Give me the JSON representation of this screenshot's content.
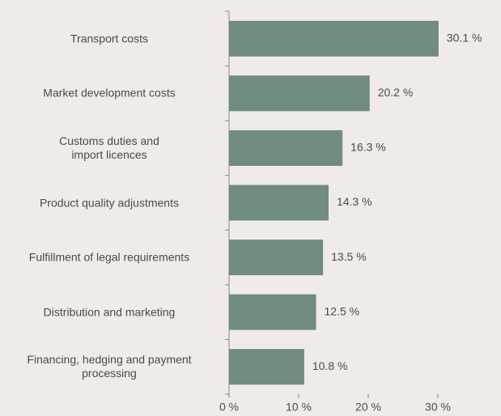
{
  "chart_data": {
    "type": "bar",
    "orientation": "horizontal",
    "categories": [
      "Transport costs",
      "Market development costs",
      "Customs duties and\nimport licences",
      "Product quality adjustments",
      "Fulfillment of legal requirements",
      "Distribution and marketing",
      "Financing, hedging and payment\nprocessing"
    ],
    "values": [
      30.1,
      20.2,
      16.3,
      14.3,
      13.5,
      12.5,
      10.8
    ],
    "value_labels": [
      "30.1 %",
      "20.2 %",
      "16.3 %",
      "14.3 %",
      "13.5 %",
      "12.5 %",
      "10.8 %"
    ],
    "color": "#6f8c7c",
    "xlim": [
      0,
      30
    ],
    "xticks": [
      {
        "value": 0,
        "label": "0 %"
      },
      {
        "value": 10,
        "label": "10 %"
      },
      {
        "value": 20,
        "label": "20 %"
      },
      {
        "value": 30,
        "label": "30 %"
      }
    ]
  }
}
